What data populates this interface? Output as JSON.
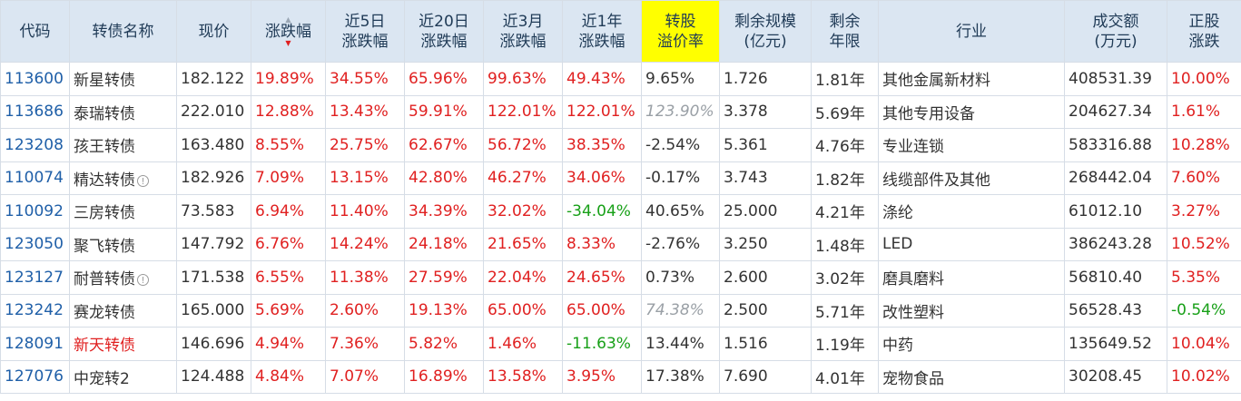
{
  "headers": {
    "code": "代码",
    "name": "转债名称",
    "price": "现价",
    "change": "涨跌幅",
    "d5_1": "近5日",
    "d5_2": "涨跌幅",
    "d20_1": "近20日",
    "d20_2": "涨跌幅",
    "m3_1": "近3月",
    "m3_2": "涨跌幅",
    "y1_1": "近1年",
    "y1_2": "涨跌幅",
    "prem_1": "转股",
    "prem_2": "溢价率",
    "scale_1": "剩余规模",
    "scale_2": "(亿元)",
    "term_1": "剩余",
    "term_2": "年限",
    "industry": "行业",
    "volume_1": "成交额",
    "volume_2": "(万元)",
    "stock_1": "正股",
    "stock_2": "涨跌"
  },
  "rows": [
    {
      "code": "113600",
      "name": "新星转债",
      "price": "182.122",
      "change": "19.89%",
      "d5": "34.55%",
      "d20": "65.96%",
      "m3": "99.63%",
      "y1": "49.43%",
      "prem": "9.65%",
      "scale": "1.726",
      "term": "1.81年",
      "industry": "其他金属新材料",
      "volume": "408531.39",
      "stock": "10.00%"
    },
    {
      "code": "113686",
      "name": "泰瑞转债",
      "price": "222.010",
      "change": "12.88%",
      "d5": "13.43%",
      "d20": "59.91%",
      "m3": "122.01%",
      "y1": "122.01%",
      "prem": "123.90%",
      "scale": "3.378",
      "term": "5.69年",
      "industry": "其他专用设备",
      "volume": "204627.34",
      "stock": "1.61%"
    },
    {
      "code": "123208",
      "name": "孩王转债",
      "price": "163.480",
      "change": "8.55%",
      "d5": "25.75%",
      "d20": "62.67%",
      "m3": "56.72%",
      "y1": "38.35%",
      "prem": "-2.54%",
      "scale": "5.361",
      "term": "4.76年",
      "industry": "专业连锁",
      "volume": "583316.88",
      "stock": "10.28%"
    },
    {
      "code": "110074",
      "name": "精达转债",
      "price": "182.926",
      "change": "7.09%",
      "d5": "13.15%",
      "d20": "42.80%",
      "m3": "46.27%",
      "y1": "34.06%",
      "prem": "-0.17%",
      "scale": "3.743",
      "term": "1.82年",
      "industry": "线缆部件及其他",
      "volume": "268442.04",
      "stock": "7.60%"
    },
    {
      "code": "110092",
      "name": "三房转债",
      "price": "73.583",
      "change": "6.94%",
      "d5": "11.40%",
      "d20": "34.39%",
      "m3": "32.02%",
      "y1": "-34.04%",
      "prem": "40.65%",
      "scale": "25.000",
      "term": "4.21年",
      "industry": "涤纶",
      "volume": "61012.10",
      "stock": "3.27%"
    },
    {
      "code": "123050",
      "name": "聚飞转债",
      "price": "147.792",
      "change": "6.76%",
      "d5": "14.24%",
      "d20": "24.18%",
      "m3": "21.65%",
      "y1": "8.33%",
      "prem": "-2.76%",
      "scale": "3.250",
      "term": "1.48年",
      "industry": "LED",
      "volume": "386243.28",
      "stock": "10.52%"
    },
    {
      "code": "123127",
      "name": "耐普转债",
      "price": "171.538",
      "change": "6.55%",
      "d5": "11.38%",
      "d20": "27.59%",
      "m3": "22.04%",
      "y1": "24.65%",
      "prem": "0.73%",
      "scale": "2.600",
      "term": "3.02年",
      "industry": "磨具磨料",
      "volume": "56810.40",
      "stock": "5.35%"
    },
    {
      "code": "123242",
      "name": "赛龙转债",
      "price": "165.000",
      "change": "5.69%",
      "d5": "2.60%",
      "d20": "19.13%",
      "m3": "65.00%",
      "y1": "65.00%",
      "prem": "74.38%",
      "scale": "2.500",
      "term": "5.71年",
      "industry": "改性塑料",
      "volume": "56528.43",
      "stock": "-0.54%"
    },
    {
      "code": "128091",
      "name": "新天转债",
      "price": "146.696",
      "change": "4.94%",
      "d5": "7.36%",
      "d20": "5.82%",
      "m3": "1.46%",
      "y1": "-11.63%",
      "prem": "13.44%",
      "scale": "1.516",
      "term": "1.19年",
      "industry": "中药",
      "volume": "135649.52",
      "stock": "10.04%"
    },
    {
      "code": "127076",
      "name": "中宠转2",
      "price": "124.488",
      "change": "4.84%",
      "d5": "7.07%",
      "d20": "16.89%",
      "m3": "13.58%",
      "y1": "3.95%",
      "prem": "17.38%",
      "scale": "7.690",
      "term": "4.01年",
      "industry": "宠物食品",
      "volume": "30208.45",
      "stock": "10.02%"
    }
  ],
  "icons": {
    "info": "info-circle-icon",
    "sort": "sort-arrows-icon"
  },
  "colors": {
    "up": "#e02020",
    "down": "#18a018",
    "code": "#1f5fa8",
    "header_bg": "#dbe6f2",
    "highlight": "#ffff00"
  }
}
